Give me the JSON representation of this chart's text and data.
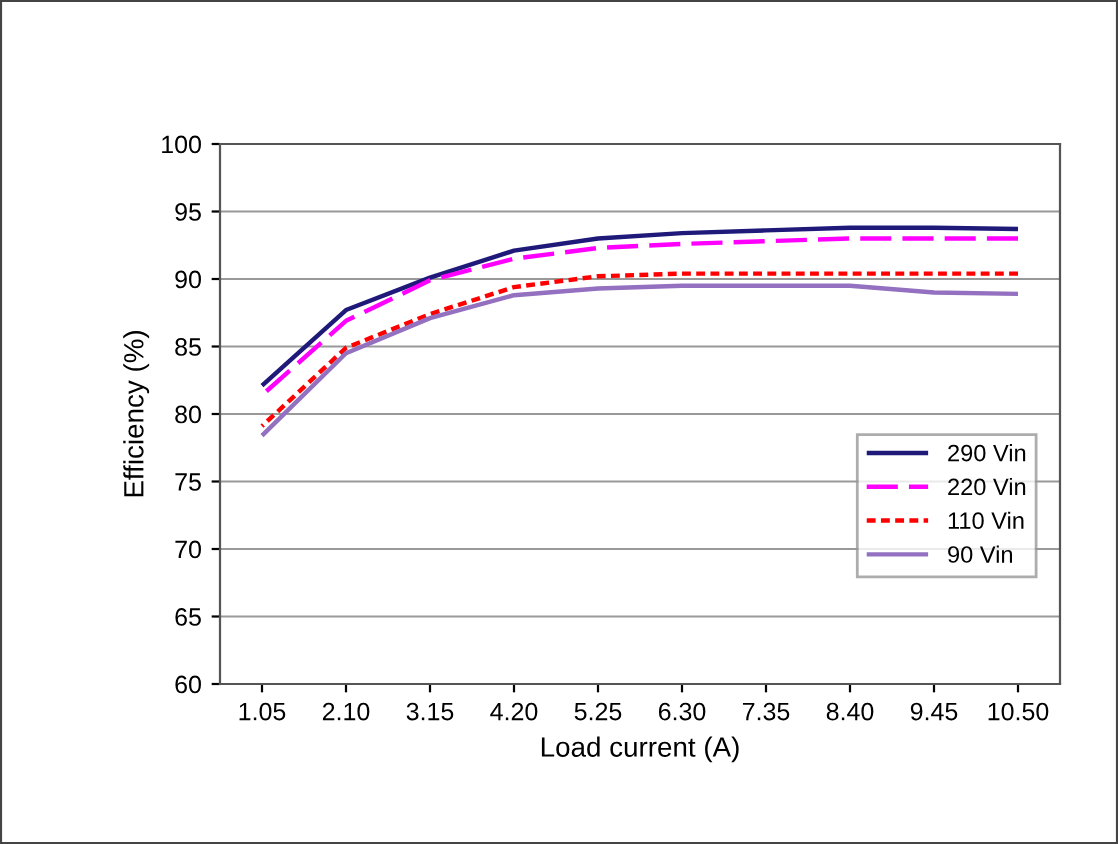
{
  "chart_data": {
    "type": "line",
    "xlabel": "Load current (A)",
    "ylabel": "Efficiency (%)",
    "categories": [
      "1.05",
      "2.10",
      "3.15",
      "4.20",
      "5.25",
      "6.30",
      "7.35",
      "8.40",
      "9.45",
      "10.50"
    ],
    "series": [
      {
        "name": "290 Vin",
        "color": "#1f1a7a",
        "line_style": "solid",
        "values": [
          82.1,
          87.7,
          90.1,
          92.1,
          93.0,
          93.4,
          93.6,
          93.8,
          93.8,
          93.7
        ]
      },
      {
        "name": "220 Vin",
        "color": "#ff00ff",
        "line_style": "dashed",
        "values": [
          81.4,
          86.9,
          89.9,
          91.5,
          92.3,
          92.6,
          92.8,
          93.0,
          93.0,
          93.0
        ]
      },
      {
        "name": "110 Vin",
        "color": "#ff0000",
        "line_style": "dotted",
        "values": [
          79.1,
          84.9,
          87.4,
          89.4,
          90.2,
          90.4,
          90.4,
          90.4,
          90.4,
          90.4
        ]
      },
      {
        "name": "90 Vin",
        "color": "#9370c0",
        "line_style": "solid",
        "values": [
          78.4,
          84.5,
          87.1,
          88.8,
          89.3,
          89.5,
          89.5,
          89.5,
          89.0,
          88.9
        ]
      }
    ],
    "ylim": [
      60,
      100
    ],
    "yticks": [
      60,
      65,
      70,
      75,
      80,
      85,
      90,
      95,
      100
    ],
    "grid": "y",
    "legend": "right",
    "marker": "none"
  }
}
